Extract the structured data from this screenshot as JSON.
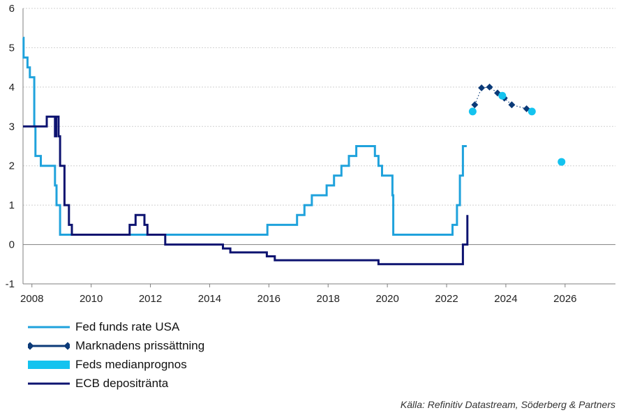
{
  "chart_data": {
    "type": "line",
    "xlim": [
      2007.7,
      2027.7
    ],
    "ylim": [
      -1,
      6
    ],
    "xticks": [
      2008,
      2010,
      2012,
      2014,
      2016,
      2018,
      2020,
      2022,
      2024,
      2026
    ],
    "yticks": [
      -1,
      0,
      1,
      2,
      3,
      4,
      5,
      6
    ],
    "xtick_labels": [
      "2008",
      "2010",
      "2012",
      "2014",
      "2016",
      "2018",
      "2020",
      "2022",
      "2024",
      "2026"
    ],
    "ytick_labels": [
      "-1",
      "0",
      "1",
      "2",
      "3",
      "4",
      "5",
      "6"
    ],
    "grid": "horizontal",
    "series": [
      {
        "name": "Fed funds rate USA",
        "style": "step-line",
        "color": "#1fa2dc",
        "points": [
          [
            2007.7,
            5.25
          ],
          [
            2007.72,
            4.75
          ],
          [
            2007.85,
            4.5
          ],
          [
            2007.93,
            4.25
          ],
          [
            2008.08,
            3.0
          ],
          [
            2008.12,
            2.25
          ],
          [
            2008.3,
            2.0
          ],
          [
            2008.78,
            1.5
          ],
          [
            2008.83,
            1.0
          ],
          [
            2008.95,
            0.25
          ],
          [
            2015.95,
            0.5
          ],
          [
            2016.95,
            0.75
          ],
          [
            2017.2,
            1.0
          ],
          [
            2017.45,
            1.25
          ],
          [
            2017.95,
            1.5
          ],
          [
            2018.2,
            1.75
          ],
          [
            2018.45,
            2.0
          ],
          [
            2018.7,
            2.25
          ],
          [
            2018.95,
            2.5
          ],
          [
            2019.58,
            2.25
          ],
          [
            2019.7,
            2.0
          ],
          [
            2019.82,
            1.75
          ],
          [
            2020.17,
            1.25
          ],
          [
            2020.2,
            0.25
          ],
          [
            2022.2,
            0.5
          ],
          [
            2022.35,
            1.0
          ],
          [
            2022.45,
            1.75
          ],
          [
            2022.55,
            2.5
          ],
          [
            2022.68,
            2.5
          ]
        ]
      },
      {
        "name": "Marknadens prissättning",
        "style": "dotted-diamond",
        "color": "#0b3a78",
        "points": [
          [
            2022.95,
            3.55
          ],
          [
            2023.18,
            3.98
          ],
          [
            2023.45,
            4.0
          ],
          [
            2023.72,
            3.85
          ],
          [
            2023.95,
            3.72
          ],
          [
            2024.2,
            3.55
          ],
          [
            2024.7,
            3.45
          ]
        ]
      },
      {
        "name": "Feds medianprognos",
        "style": "marker",
        "color": "#14c3ef",
        "points": [
          [
            2022.88,
            3.38
          ],
          [
            2023.88,
            3.78
          ],
          [
            2024.88,
            3.38
          ],
          [
            2025.88,
            2.1
          ]
        ]
      },
      {
        "name": "ECB depositränta",
        "style": "step-line",
        "color": "#0d1370",
        "points": [
          [
            2007.7,
            3.0
          ],
          [
            2008.5,
            3.25
          ],
          [
            2008.78,
            2.75
          ],
          [
            2008.82,
            3.25
          ],
          [
            2008.9,
            2.75
          ],
          [
            2008.95,
            2.0
          ],
          [
            2009.1,
            1.0
          ],
          [
            2009.25,
            0.5
          ],
          [
            2009.35,
            0.25
          ],
          [
            2011.3,
            0.5
          ],
          [
            2011.5,
            0.75
          ],
          [
            2011.8,
            0.5
          ],
          [
            2011.9,
            0.25
          ],
          [
            2012.5,
            0.0
          ],
          [
            2014.45,
            -0.1
          ],
          [
            2014.7,
            -0.2
          ],
          [
            2015.93,
            -0.3
          ],
          [
            2016.2,
            -0.4
          ],
          [
            2019.7,
            -0.5
          ],
          [
            2022.55,
            0.0
          ],
          [
            2022.7,
            0.75
          ]
        ]
      }
    ],
    "legend": {
      "position": "bottom-left",
      "items": [
        {
          "label": "Fed funds rate USA",
          "color": "#1fa2dc",
          "style": "line"
        },
        {
          "label": "Marknadens prissättning",
          "color": "#0b3a78",
          "style": "line-diamonds"
        },
        {
          "label": "Feds medianprognos",
          "color": "#14c3ef",
          "style": "block"
        },
        {
          "label": "ECB depositränta",
          "color": "#0d1370",
          "style": "line"
        }
      ]
    },
    "source": "Källa: Refinitiv Datastream, Söderberg & Partners"
  }
}
